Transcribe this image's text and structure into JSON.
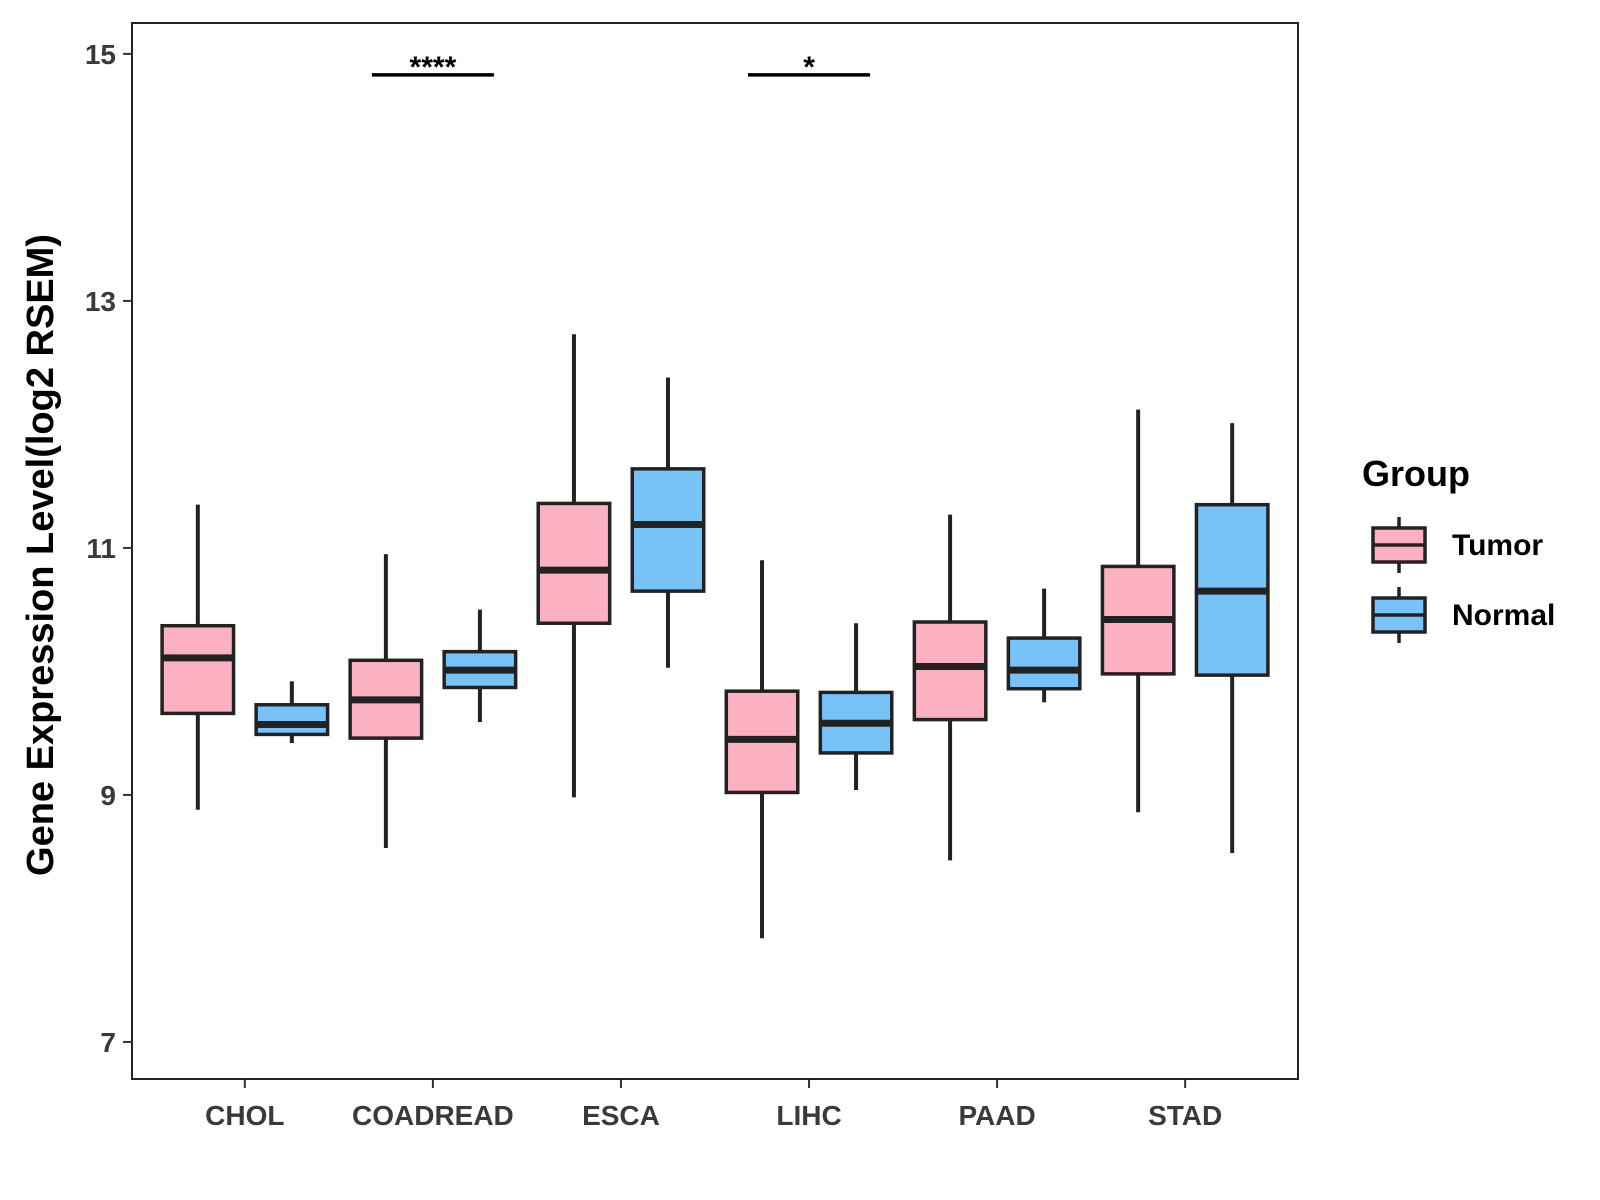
{
  "chart_data": {
    "type": "boxplot",
    "title": "",
    "xlabel": "",
    "ylabel": "Gene Expression Level(log2 RSEM)",
    "ylim": [
      6.7,
      15.25
    ],
    "yticks": [
      7,
      9,
      11,
      13,
      15
    ],
    "categories": [
      "CHOL",
      "COADREAD",
      "ESCA",
      "LIHC",
      "PAAD",
      "STAD"
    ],
    "series": [
      {
        "name": "Tumor",
        "color": "#FBB1C2",
        "boxes": [
          {
            "min": 8.88,
            "q1": 9.66,
            "median": 10.11,
            "q3": 10.37,
            "max": 11.35
          },
          {
            "min": 8.57,
            "q1": 9.46,
            "median": 9.77,
            "q3": 10.09,
            "max": 10.95
          },
          {
            "min": 8.98,
            "q1": 10.39,
            "median": 10.82,
            "q3": 11.36,
            "max": 12.73
          },
          {
            "min": 7.84,
            "q1": 9.02,
            "median": 9.45,
            "q3": 9.84,
            "max": 10.9
          },
          {
            "min": 8.47,
            "q1": 9.61,
            "median": 10.04,
            "q3": 10.4,
            "max": 11.27
          },
          {
            "min": 8.86,
            "q1": 9.98,
            "median": 10.42,
            "q3": 10.85,
            "max": 12.12
          }
        ]
      },
      {
        "name": "Normal",
        "color": "#77C3F8",
        "boxes": [
          {
            "min": 9.42,
            "q1": 9.49,
            "median": 9.57,
            "q3": 9.73,
            "max": 9.92
          },
          {
            "min": 9.59,
            "q1": 9.87,
            "median": 10.01,
            "q3": 10.16,
            "max": 10.5
          },
          {
            "min": 10.03,
            "q1": 10.65,
            "median": 11.19,
            "q3": 11.64,
            "max": 12.38
          },
          {
            "min": 9.04,
            "q1": 9.34,
            "median": 9.58,
            "q3": 9.83,
            "max": 10.39
          },
          {
            "min": 9.75,
            "q1": 9.86,
            "median": 10.01,
            "q3": 10.27,
            "max": 10.67
          },
          {
            "min": 8.53,
            "q1": 9.97,
            "median": 10.65,
            "q3": 11.35,
            "max": 12.01
          }
        ]
      }
    ],
    "annotations": [
      {
        "category": "COADREAD",
        "label": "****",
        "y": 14.83
      },
      {
        "category": "LIHC",
        "label": "*",
        "y": 14.83
      }
    ],
    "legend": {
      "title": "Group",
      "position": "right",
      "entries": [
        "Tumor",
        "Normal"
      ]
    },
    "grid": false
  }
}
